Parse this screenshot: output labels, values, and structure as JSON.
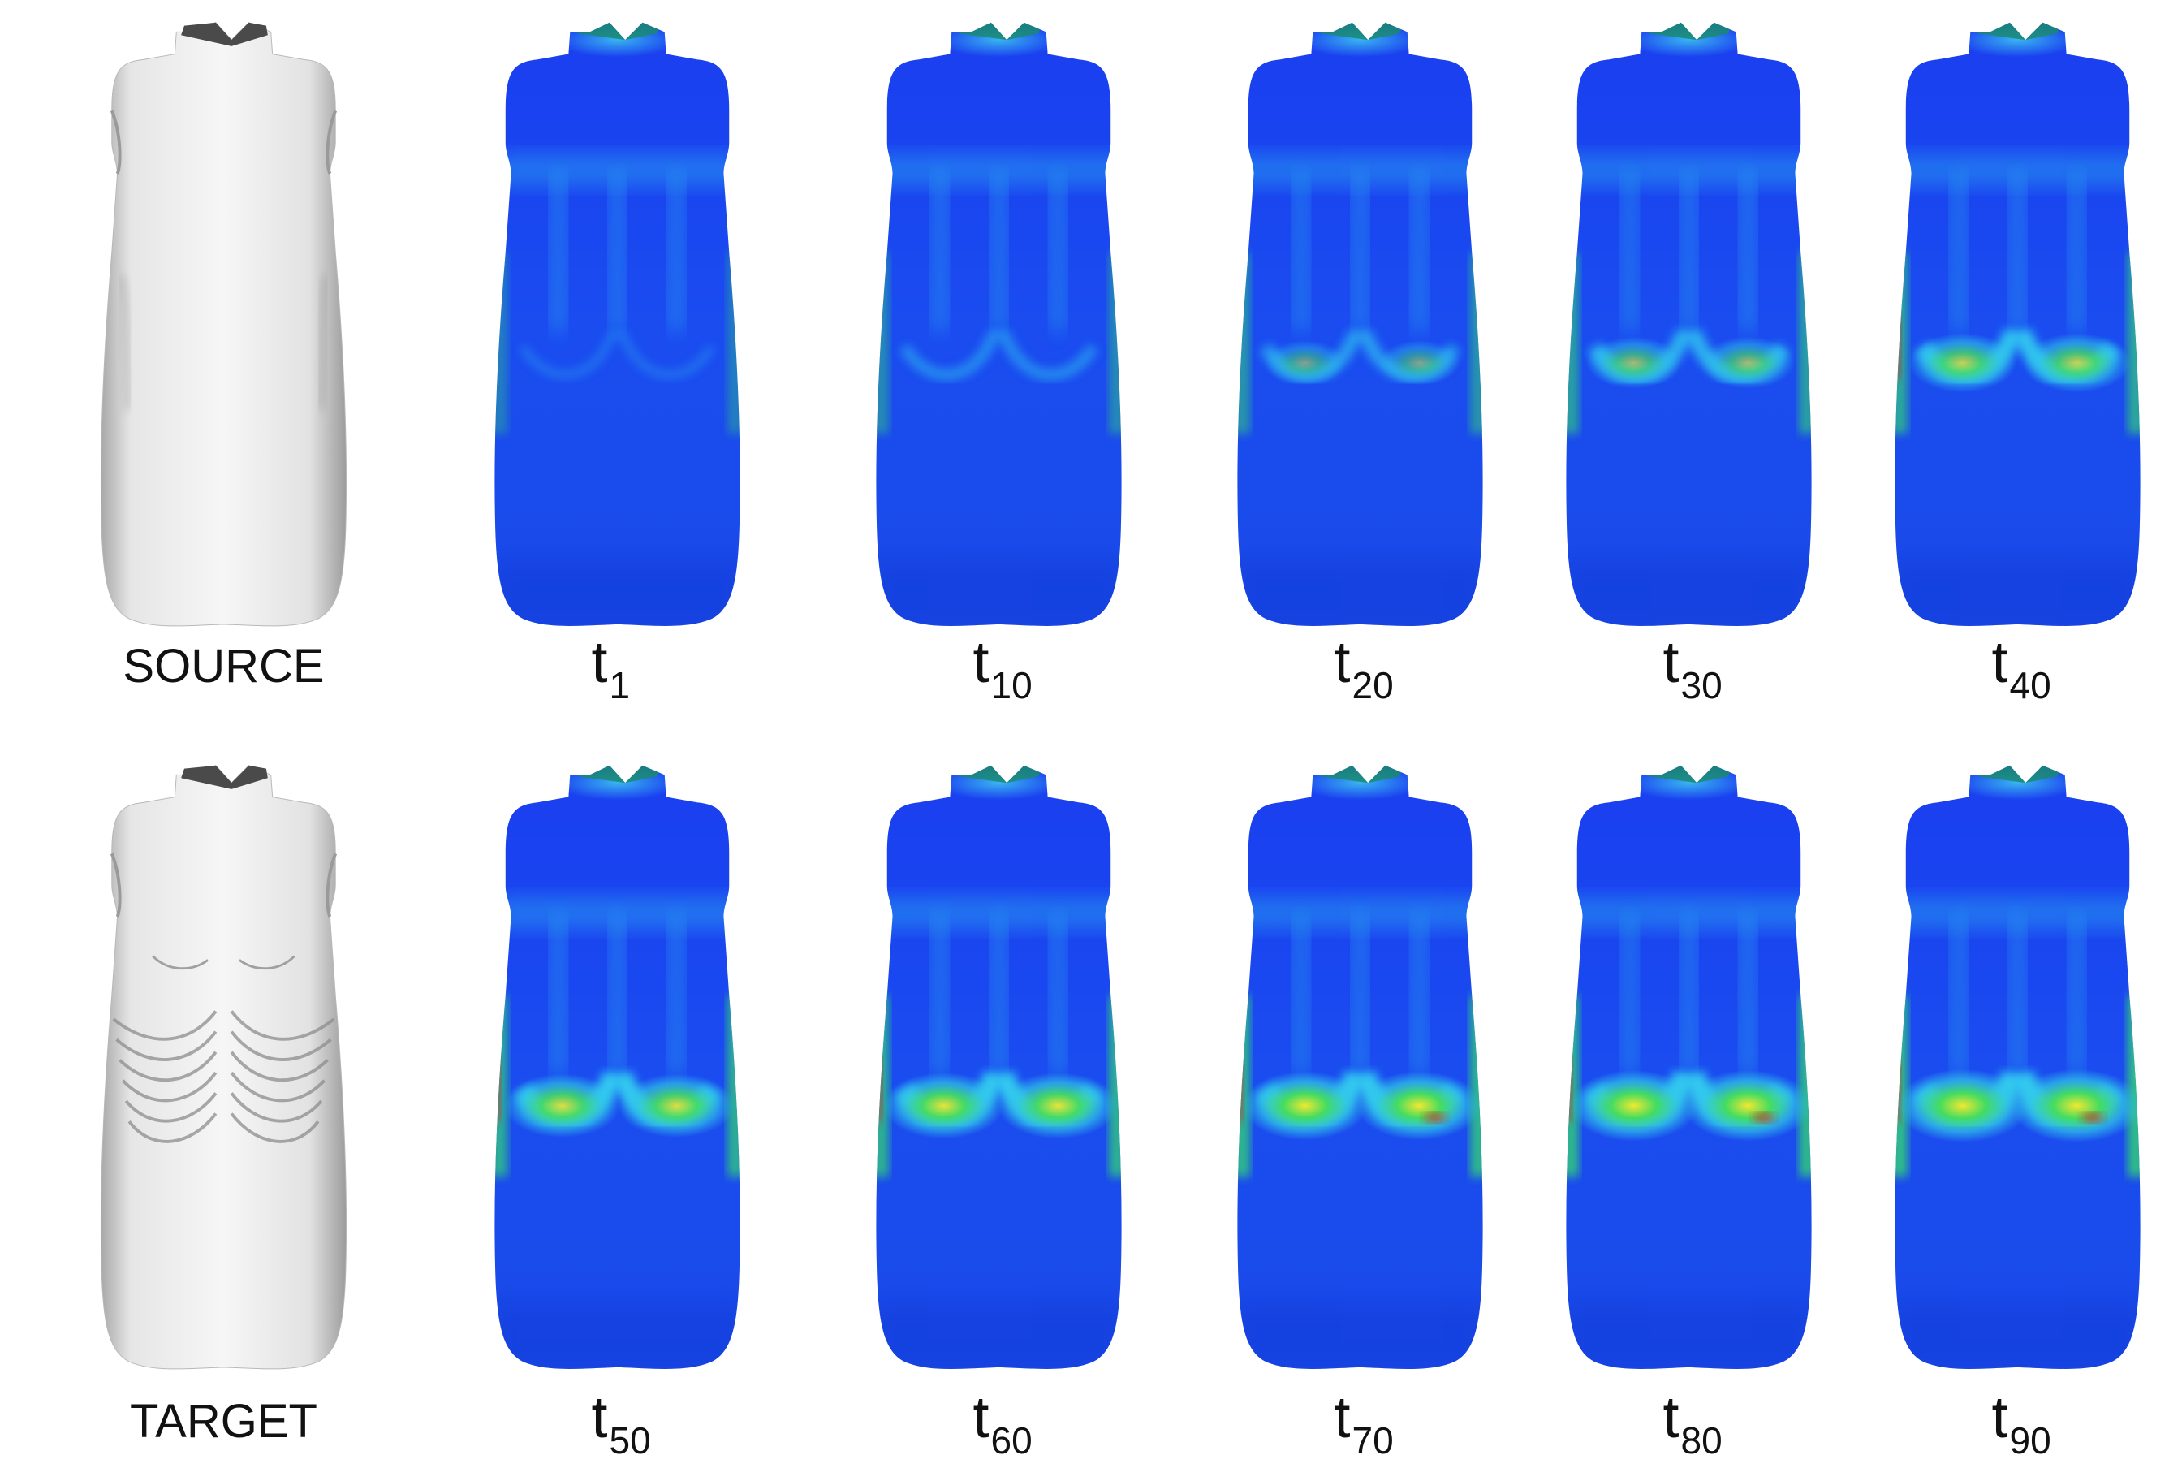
{
  "colors": {
    "background": "#ffffff",
    "mesh_gray_light": "#f4f4f4",
    "mesh_gray_mid": "#d8d8d8",
    "mesh_gray_dark": "#9a9a9a",
    "collar_dark": "#4a4a4a",
    "heat_blue": "#1640e8",
    "heat_cyan": "#30c8f0",
    "heat_green": "#36d870",
    "heat_yellow": "#e8e830",
    "heat_red": "#d82020"
  },
  "rows": [
    {
      "side_label": "SOURCE",
      "mesh": "dress-smooth",
      "frames": [
        {
          "main": "t",
          "sub": "1",
          "intensity": 0.05
        },
        {
          "main": "t",
          "sub": "10",
          "intensity": 0.25
        },
        {
          "main": "t",
          "sub": "20",
          "intensity": 0.4
        },
        {
          "main": "t",
          "sub": "30",
          "intensity": 0.55
        },
        {
          "main": "t",
          "sub": "40",
          "intensity": 0.7
        }
      ]
    },
    {
      "side_label": "TARGET",
      "mesh": "dress-draped",
      "frames": [
        {
          "main": "t",
          "sub": "50",
          "intensity": 0.8
        },
        {
          "main": "t",
          "sub": "60",
          "intensity": 0.85
        },
        {
          "main": "t",
          "sub": "70",
          "intensity": 0.9
        },
        {
          "main": "t",
          "sub": "80",
          "intensity": 0.95
        },
        {
          "main": "t",
          "sub": "90",
          "intensity": 1.0
        }
      ]
    }
  ]
}
